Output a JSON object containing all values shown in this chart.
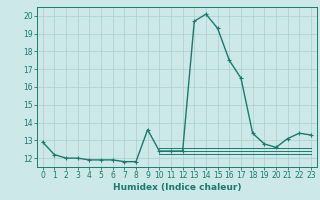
{
  "title": "",
  "xlabel": "Humidex (Indice chaleur)",
  "ylabel": "",
  "x": [
    0,
    1,
    2,
    3,
    4,
    5,
    6,
    7,
    8,
    9,
    10,
    11,
    12,
    13,
    14,
    15,
    16,
    17,
    18,
    19,
    20,
    21,
    22,
    23
  ],
  "series": [
    {
      "y": [
        12.9,
        12.2,
        12.0,
        12.0,
        11.9,
        11.9,
        11.9,
        11.8,
        11.8,
        13.6,
        12.4,
        12.4,
        12.4,
        19.7,
        20.1,
        19.3,
        17.5,
        16.5,
        13.4,
        12.8,
        12.6,
        13.1,
        13.4,
        13.3
      ],
      "color": "#1a7a6e",
      "lw": 1.0,
      "marker": "+"
    },
    {
      "y": [
        null,
        null,
        null,
        null,
        null,
        null,
        null,
        null,
        null,
        null,
        12.25,
        12.25,
        12.25,
        12.25,
        12.25,
        12.25,
        12.25,
        12.25,
        12.25,
        12.25,
        12.25,
        12.25,
        12.25,
        12.25
      ],
      "color": "#1a7a6e",
      "lw": 0.7,
      "marker": null
    },
    {
      "y": [
        null,
        null,
        null,
        null,
        null,
        null,
        null,
        null,
        null,
        null,
        12.4,
        12.4,
        12.4,
        12.4,
        12.4,
        12.4,
        12.4,
        12.4,
        12.4,
        12.4,
        12.4,
        12.4,
        12.4,
        12.4
      ],
      "color": "#1a7a6e",
      "lw": 0.7,
      "marker": null
    },
    {
      "y": [
        null,
        null,
        null,
        null,
        null,
        null,
        null,
        null,
        null,
        null,
        12.55,
        12.55,
        12.55,
        12.55,
        12.55,
        12.55,
        12.55,
        12.55,
        12.55,
        12.55,
        12.55,
        12.55,
        12.55,
        12.55
      ],
      "color": "#1a7a6e",
      "lw": 0.7,
      "marker": null
    }
  ],
  "ylim": [
    11.5,
    20.5
  ],
  "yticks": [
    12,
    13,
    14,
    15,
    16,
    17,
    18,
    19,
    20
  ],
  "xlim": [
    -0.5,
    23.5
  ],
  "bg_color": "#cce8e8",
  "grid_color": "#aacfcf",
  "line_color": "#1a7a6e",
  "tick_color": "#1a7a6e",
  "label_color": "#1a7a6e",
  "tick_fontsize": 5.5,
  "xlabel_fontsize": 6.5
}
